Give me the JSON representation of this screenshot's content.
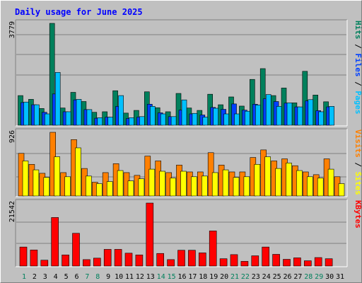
{
  "title": "Daily usage for June 2025",
  "colors": {
    "hits": "#00805c",
    "files": "#0040ff",
    "pages": "#00c0ff",
    "visits": "#ff8000",
    "sites": "#ffff00",
    "kbytes": "#ff0000",
    "weekend": "#00805c",
    "weekday": "#0000ff",
    "title": "#0000ff",
    "background": "#c0c0c0",
    "plot": "#c0c0c0",
    "grid": "#808080"
  },
  "right_labels": {
    "hits_panel": [
      "Pages",
      "Files",
      "Hits"
    ],
    "visits_panel": [
      "Sites",
      "Visits"
    ],
    "kbytes_panel": [
      "KBytes"
    ],
    "separator": " / "
  },
  "chart_data": [
    {
      "type": "bar",
      "panel": "hits",
      "categories": [
        "1",
        "2",
        "3",
        "4",
        "5",
        "6",
        "7",
        "8",
        "9",
        "10",
        "11",
        "12",
        "13",
        "14",
        "15",
        "16",
        "17",
        "18",
        "19",
        "20",
        "21",
        "22",
        "23",
        "24",
        "25",
        "26",
        "27",
        "28",
        "29",
        "30",
        "31"
      ],
      "ymax_label": "3779",
      "ylim": [
        0,
        3779
      ],
      "series": [
        {
          "name": "Hits",
          "values": [
            1100,
            960,
            620,
            3779,
            640,
            1220,
            880,
            480,
            500,
            1280,
            450,
            550,
            1240,
            650,
            500,
            1180,
            640,
            550,
            1150,
            760,
            1050,
            710,
            1700,
            2100,
            1100,
            1380,
            830,
            2000,
            1120,
            870,
            null
          ]
        },
        {
          "name": "Files",
          "values": [
            840,
            760,
            480,
            1160,
            500,
            940,
            580,
            260,
            300,
            700,
            250,
            300,
            780,
            460,
            320,
            560,
            420,
            380,
            660,
            590,
            790,
            560,
            780,
            980,
            880,
            820,
            680,
            900,
            540,
            680,
            null
          ]
        },
        {
          "name": "Pages",
          "values": [
            860,
            760,
            420,
            1960,
            500,
            960,
            580,
            280,
            300,
            1100,
            280,
            320,
            700,
            420,
            320,
            940,
            440,
            300,
            630,
            420,
            420,
            520,
            750,
            1140,
            700,
            830,
            680,
            950,
            500,
            700,
            null
          ]
        }
      ]
    },
    {
      "type": "bar",
      "panel": "visits",
      "categories": [
        "1",
        "2",
        "3",
        "4",
        "5",
        "6",
        "7",
        "8",
        "9",
        "10",
        "11",
        "12",
        "13",
        "14",
        "15",
        "16",
        "17",
        "18",
        "19",
        "20",
        "21",
        "22",
        "23",
        "24",
        "25",
        "26",
        "27",
        "28",
        "29",
        "30",
        "31"
      ],
      "ymax_label": "926",
      "ylim": [
        0,
        926
      ],
      "series": [
        {
          "name": "Visits",
          "values": [
            620,
            460,
            330,
            926,
            340,
            820,
            400,
            200,
            340,
            470,
            340,
            300,
            580,
            510,
            340,
            450,
            350,
            350,
            630,
            450,
            350,
            350,
            560,
            670,
            510,
            540,
            440,
            350,
            310,
            540,
            280
          ]
        },
        {
          "name": "Sites",
          "values": [
            510,
            380,
            270,
            570,
            280,
            700,
            290,
            180,
            210,
            370,
            220,
            250,
            390,
            360,
            260,
            360,
            280,
            290,
            340,
            380,
            270,
            280,
            460,
            570,
            400,
            480,
            370,
            280,
            260,
            390,
            180
          ]
        }
      ]
    },
    {
      "type": "bar",
      "panel": "kbytes",
      "categories": [
        "1",
        "2",
        "3",
        "4",
        "5",
        "6",
        "7",
        "8",
        "9",
        "10",
        "11",
        "12",
        "13",
        "14",
        "15",
        "16",
        "17",
        "18",
        "19",
        "20",
        "21",
        "22",
        "23",
        "24",
        "25",
        "26",
        "27",
        "28",
        "29",
        "30",
        "31"
      ],
      "ymax_label": "21542",
      "ylim": [
        0,
        21542
      ],
      "series": [
        {
          "name": "KBytes",
          "values": [
            6500,
            5500,
            2000,
            16600,
            3800,
            11200,
            2200,
            2700,
            5700,
            5700,
            4400,
            3800,
            21542,
            4300,
            2200,
            5400,
            5400,
            4500,
            12000,
            2500,
            3900,
            1600,
            3500,
            6500,
            4000,
            2300,
            2800,
            1800,
            2900,
            2500,
            null
          ]
        }
      ]
    }
  ]
}
